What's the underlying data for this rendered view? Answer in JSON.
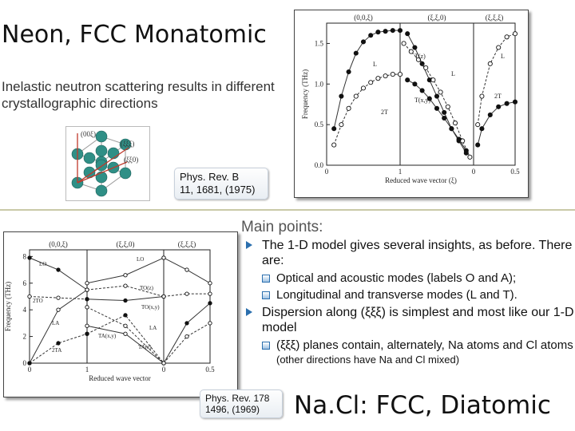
{
  "top": {
    "title": "Neon, FCC Monatomic",
    "subtitle": "Inelastic neutron scattering results in different crystallographic directions",
    "crystal_labels": [
      "(00ξ)",
      "(ξξξ)",
      "(ξξ0)"
    ],
    "reference": {
      "journal": "Phys. Rev. B",
      "citation": "11, 1681, (1975)"
    }
  },
  "bottom": {
    "main_points_heading": "Main points:",
    "bullets": [
      {
        "text": "The 1-D model gives several insights, as before.  There are:",
        "sub": [
          "Optical and acoustic modes (labels O and A);",
          "Longitudinal and transverse modes (L and T)."
        ]
      },
      {
        "text": "Dispersion along (ξξξ) is simplest and most like our 1-D model",
        "sub": [
          "(ξξξ) planes contain, alternately, Na atoms and Cl atoms"
        ],
        "sub_small": " (other directions have Na and Cl mixed)"
      }
    ],
    "title": "Na.Cl: FCC, Diatomic",
    "reference": {
      "journal": "Phys. Rev.  178",
      "citation": "1496, (1969)"
    }
  },
  "chart_data": [
    {
      "type": "scatter",
      "name": "neon",
      "xlabel": "Reduced wave vector (ξ)",
      "ylabel": "Frequency (THz)",
      "panel_labels": [
        "(0,0,ξ)",
        "(ξ,ξ,0)",
        "(ξ,ξ,ξ)"
      ],
      "x_ticks": [
        "0",
        "1",
        "0",
        "0.5"
      ],
      "y_ticks": [
        "0.0",
        "0.5",
        "1.0",
        "1.5"
      ],
      "ylim": [
        0,
        1.75
      ],
      "branch_labels": [
        "L",
        "2T",
        "T(z)",
        "L",
        "T(x,y)",
        "L",
        "2T"
      ],
      "series": [
        {
          "name": "L (0,0,ξ)",
          "points": [
            [
              0.1,
              0.45
            ],
            [
              0.2,
              0.85
            ],
            [
              0.3,
              1.15
            ],
            [
              0.4,
              1.38
            ],
            [
              0.5,
              1.52
            ],
            [
              0.6,
              1.6
            ],
            [
              0.7,
              1.64
            ],
            [
              0.8,
              1.65
            ],
            [
              0.9,
              1.66
            ],
            [
              1.0,
              1.66
            ]
          ]
        },
        {
          "name": "T (0,0,ξ)",
          "points": [
            [
              0.1,
              0.25
            ],
            [
              0.2,
              0.5
            ],
            [
              0.3,
              0.7
            ],
            [
              0.4,
              0.85
            ],
            [
              0.5,
              0.95
            ],
            [
              0.6,
              1.02
            ],
            [
              0.7,
              1.07
            ],
            [
              0.8,
              1.1
            ],
            [
              0.9,
              1.12
            ],
            [
              1.0,
              1.12
            ]
          ]
        },
        {
          "name": "L (ξ,ξ,0)",
          "points": [
            [
              0.1,
              1.62
            ],
            [
              0.2,
              1.45
            ],
            [
              0.3,
              1.25
            ],
            [
              0.4,
              1.05
            ],
            [
              0.5,
              0.85
            ],
            [
              0.6,
              0.65
            ],
            [
              0.7,
              0.45
            ],
            [
              0.8,
              0.3
            ],
            [
              0.9,
              0.15
            ]
          ]
        },
        {
          "name": "T(z) (ξ,ξ,0)",
          "points": [
            [
              0.05,
              1.5
            ],
            [
              0.15,
              1.4
            ],
            [
              0.25,
              1.3
            ],
            [
              0.35,
              1.2
            ],
            [
              0.45,
              1.05
            ],
            [
              0.55,
              0.9
            ],
            [
              0.65,
              0.72
            ],
            [
              0.75,
              0.52
            ],
            [
              0.85,
              0.3
            ],
            [
              0.95,
              0.1
            ]
          ]
        },
        {
          "name": "T(x,y) (ξ,ξ,0)",
          "points": [
            [
              0.1,
              1.05
            ],
            [
              0.2,
              1.0
            ],
            [
              0.3,
              0.92
            ],
            [
              0.4,
              0.82
            ],
            [
              0.5,
              0.7
            ],
            [
              0.6,
              0.58
            ],
            [
              0.7,
              0.45
            ],
            [
              0.8,
              0.32
            ],
            [
              0.9,
              0.18
            ]
          ]
        },
        {
          "name": "L (ξ,ξ,ξ)",
          "points": [
            [
              0.05,
              0.5
            ],
            [
              0.1,
              0.85
            ],
            [
              0.2,
              1.25
            ],
            [
              0.3,
              1.45
            ],
            [
              0.4,
              1.58
            ],
            [
              0.5,
              1.62
            ]
          ]
        },
        {
          "name": "2T (ξ,ξ,ξ)",
          "points": [
            [
              0.05,
              0.25
            ],
            [
              0.1,
              0.45
            ],
            [
              0.2,
              0.62
            ],
            [
              0.3,
              0.72
            ],
            [
              0.4,
              0.76
            ],
            [
              0.5,
              0.78
            ]
          ]
        }
      ]
    },
    {
      "type": "line",
      "name": "nacl",
      "xlabel": "Reduced wave vector",
      "ylabel": "Frequency (THz)",
      "panel_labels": [
        "(0,0,ξ)",
        "(ξ,ξ,0)",
        "(ξ,ξ,ξ)"
      ],
      "x_ticks": [
        "0",
        "1",
        "0",
        "0.5"
      ],
      "y_ticks": [
        "0",
        "2",
        "4",
        "6",
        "8"
      ],
      "ylim": [
        0,
        8.5
      ],
      "branch_labels": [
        "LO",
        "2TO",
        "LA",
        "2TA",
        "LO",
        "TO(z)",
        "TO(x,y)",
        "LA",
        "TA(x,y)",
        "TA(z)"
      ],
      "series": [
        {
          "name": "LO (0,0,ξ)",
          "points": [
            [
              0,
              7.9
            ],
            [
              0.5,
              7.0
            ],
            [
              1.0,
              5.5
            ]
          ]
        },
        {
          "name": "2TO (0,0,ξ)",
          "points": [
            [
              0,
              5.0
            ],
            [
              0.5,
              4.9
            ],
            [
              1.0,
              4.8
            ]
          ]
        },
        {
          "name": "LA (0,0,ξ)",
          "points": [
            [
              0,
              0
            ],
            [
              0.5,
              4.0
            ],
            [
              1.0,
              5.5
            ]
          ]
        },
        {
          "name": "2TA (0,0,ξ)",
          "points": [
            [
              0,
              0
            ],
            [
              0.5,
              1.5
            ],
            [
              1.0,
              2.2
            ]
          ]
        },
        {
          "name": "LO (ξ,ξ,0)",
          "points": [
            [
              0,
              6.0
            ],
            [
              0.5,
              6.6
            ],
            [
              1.0,
              7.9
            ]
          ]
        },
        {
          "name": "TO(z) (ξ,ξ,0)",
          "points": [
            [
              0,
              5.5
            ],
            [
              0.5,
              5.8
            ],
            [
              1.0,
              5.0
            ]
          ]
        },
        {
          "name": "TO(x,y) (ξ,ξ,0)",
          "points": [
            [
              0,
              4.8
            ],
            [
              0.5,
              4.7
            ],
            [
              1.0,
              5.0
            ]
          ]
        },
        {
          "name": "LA (ξ,ξ,0)",
          "points": [
            [
              0,
              4.2
            ],
            [
              0.5,
              2.8
            ],
            [
              1.0,
              0
            ]
          ]
        },
        {
          "name": "TA(x,y) (ξ,ξ,0)",
          "points": [
            [
              0,
              2.8
            ],
            [
              0.5,
              2.2
            ],
            [
              1.0,
              0
            ]
          ]
        },
        {
          "name": "TA(z) (ξ,ξ,0)",
          "points": [
            [
              0,
              2.2
            ],
            [
              0.5,
              3.6
            ],
            [
              1.0,
              0
            ]
          ]
        },
        {
          "name": "LO (ξ,ξ,ξ)",
          "points": [
            [
              0,
              7.9
            ],
            [
              0.25,
              7.0
            ],
            [
              0.5,
              6.0
            ]
          ]
        },
        {
          "name": "TO (ξ,ξ,ξ)",
          "points": [
            [
              0,
              5.0
            ],
            [
              0.25,
              5.2
            ],
            [
              0.5,
              5.2
            ]
          ]
        },
        {
          "name": "LA (ξ,ξ,ξ)",
          "points": [
            [
              0,
              0
            ],
            [
              0.25,
              3.0
            ],
            [
              0.5,
              4.5
            ]
          ]
        },
        {
          "name": "TA (ξ,ξ,ξ)",
          "points": [
            [
              0,
              0
            ],
            [
              0.25,
              2.0
            ],
            [
              0.5,
              3.0
            ]
          ]
        }
      ]
    }
  ],
  "colors": {
    "bullet_accent": "#2b6fae",
    "separator": "#c9c9a7"
  }
}
